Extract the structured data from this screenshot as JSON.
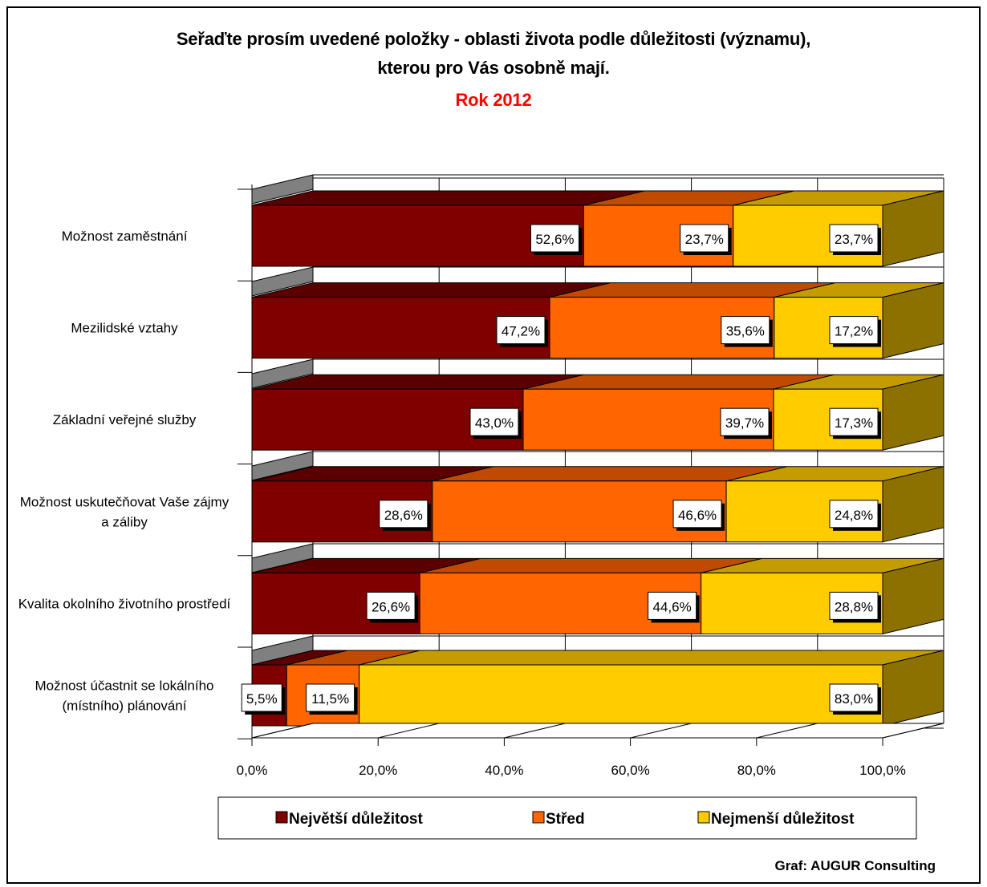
{
  "title": {
    "line1": "Seřaďte prosím uvedené položky - oblasti života podle důležitosti (významu),",
    "line2": "kterou pro Vás osobně mají.",
    "line3": "Rok 2012"
  },
  "credit": "Graf: AUGUR Consulting",
  "colors": {
    "series": [
      "#800000",
      "#FF6600",
      "#FFCC00"
    ],
    "series_top": [
      "#5a0000",
      "#c04a00",
      "#c49c00"
    ],
    "series_side": [
      "#5a0000",
      "#a04000",
      "#8c7000"
    ],
    "wall": "#808080"
  },
  "chart_data": {
    "type": "bar",
    "orientation": "horizontal",
    "stacked": "percent",
    "categories": [
      "Možnost zaměstnání",
      "Mezilidské vztahy",
      "Základní veřejné služby",
      "Možnost uskutečňovat Vaše zájmy a záliby",
      "Kvalita okolního životního prostředí",
      "Možnost účastnit se lokálního (místního) plánování"
    ],
    "category_lines": [
      [
        "Možnost zaměstnání"
      ],
      [
        "Mezilidské vztahy"
      ],
      [
        "Základní veřejné služby"
      ],
      [
        "Možnost uskutečňovat Vaše zájmy",
        "a záliby"
      ],
      [
        "Kvalita okolního životního prostředí"
      ],
      [
        "Možnost účastnit se lokálního",
        "(místního) plánování"
      ]
    ],
    "series": [
      {
        "name": "Největší důležitost",
        "values": [
          52.6,
          47.2,
          43.0,
          28.6,
          26.6,
          5.5
        ],
        "labels": [
          "52,6%",
          "47,2%",
          "43,0%",
          "28,6%",
          "26,6%",
          "5,5%"
        ]
      },
      {
        "name": "Střed",
        "values": [
          23.7,
          35.6,
          39.7,
          46.6,
          44.6,
          11.5
        ],
        "labels": [
          "23,7%",
          "35,6%",
          "39,7%",
          "46,6%",
          "44,6%",
          "11,5%"
        ]
      },
      {
        "name": "Nejmenší důležitost",
        "values": [
          23.7,
          17.2,
          17.3,
          24.8,
          28.8,
          83.0
        ],
        "labels": [
          "23,7%",
          "17,2%",
          "17,3%",
          "24,8%",
          "28,8%",
          "83,0%"
        ]
      }
    ],
    "xlim": [
      0,
      100
    ],
    "xticks": [
      "0,0%",
      "20,0%",
      "40,0%",
      "60,0%",
      "80,0%",
      "100,0%"
    ],
    "grid": true,
    "legend": "bottom"
  }
}
